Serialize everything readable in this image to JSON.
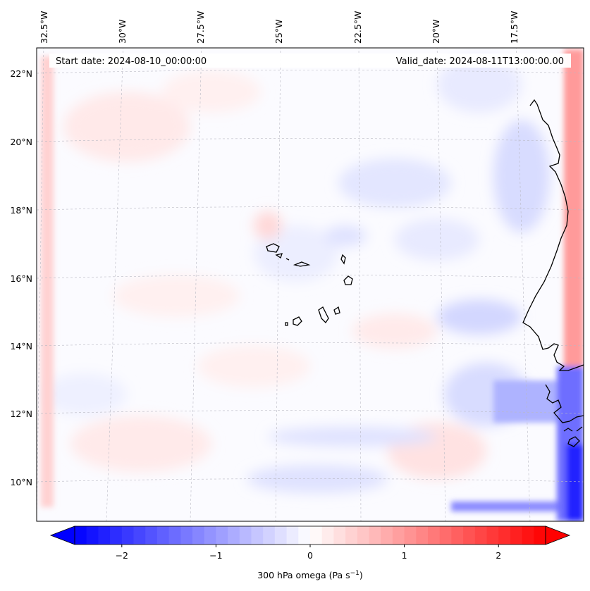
{
  "map": {
    "header": {
      "start_date": "Start date: 2024-08-10_00:00:00",
      "valid_date": "Valid_date: 2024-08-11T13:00:00.00"
    },
    "lon_labels": [
      "32.5°W",
      "30°W",
      "27.5°W",
      "25°W",
      "22.5°W",
      "20°W",
      "17.5°W"
    ],
    "lat_labels": [
      "22°N",
      "20°N",
      "18°N",
      "16°N",
      "14°N",
      "12°N",
      "10°N"
    ],
    "colorbar": {
      "ticks": [
        "−2",
        "−1",
        "0",
        "1",
        "2"
      ],
      "tick_values": [
        -2,
        -1,
        0,
        1,
        2
      ],
      "vmin": -2.5,
      "vmax": 2.5,
      "label": "300 hPa omega (Pa s",
      "label_sup": "−1",
      "label_close": ")"
    },
    "colors": {
      "negative": "#0000ff",
      "positive": "#ff0000",
      "zero": "#ffffff",
      "coast": "#000000",
      "grid": "#b0b0b0"
    }
  }
}
